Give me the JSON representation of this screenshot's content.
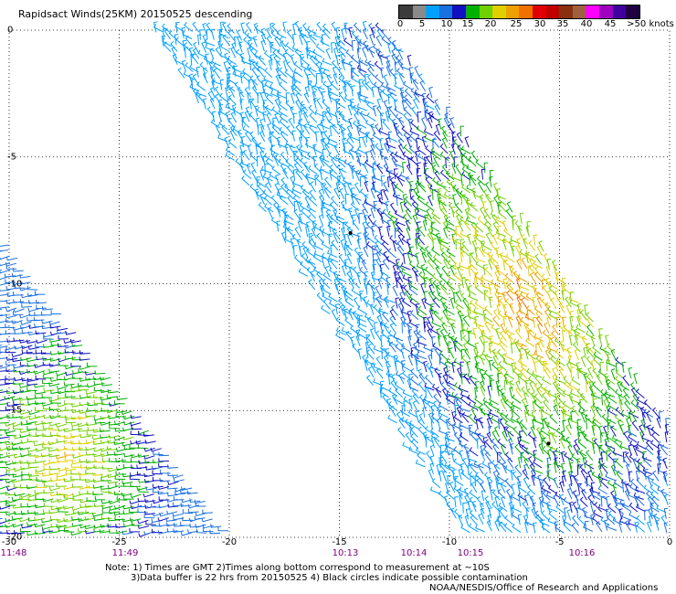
{
  "header": {
    "title": "Rapidsact Winds(25KM) 20150525 descending"
  },
  "colorbar": {
    "labels": [
      "0",
      "5",
      "10",
      "15",
      "20",
      "25",
      "30",
      "35",
      "40",
      "45",
      ">50 knots"
    ],
    "colors": [
      "#3c3c3c",
      "#8a8a8a",
      "#00a0ff",
      "#1a70e0",
      "#1010c0",
      "#00b000",
      "#70d000",
      "#e0d000",
      "#f0a000",
      "#f07000",
      "#e00000",
      "#c00000",
      "#8a3010",
      "#a06040",
      "#ff00ff",
      "#a000c0",
      "#4000a0",
      "#200040"
    ]
  },
  "axes": {
    "x_ticks": [
      "-30",
      "-25",
      "-20",
      "-15",
      "-10",
      "-5",
      "0"
    ],
    "y_ticks": [
      "0",
      "-5",
      "-10",
      "-15",
      "-20"
    ],
    "x_range": [
      -30,
      0
    ],
    "y_range": [
      -20,
      0
    ]
  },
  "times": {
    "labels": [
      "11:48",
      "11:49",
      "10:13",
      "10:14",
      "10:15",
      "10:16"
    ]
  },
  "notes": {
    "line1": "Note: 1) Times are GMT 2)Times along bottom correspond to measurement at ~10S",
    "line2": "3)Data buffer is 22 hrs from 20150525 4) Black circles indicate possible contamination",
    "credit": "NOAA/NESDIS/Office of Research and Applications"
  },
  "contamination_points": [
    {
      "lon": -14.5,
      "lat": -8.0
    },
    {
      "lon": -5.5,
      "lat": -16.3
    }
  ],
  "swaths": [
    {
      "name": "west",
      "lon_range": [
        -30,
        -19
      ],
      "lat_range": [
        -20,
        -8.5
      ],
      "wind_knots_range": [
        10,
        25
      ]
    },
    {
      "name": "east",
      "lon_range": [
        -23,
        0
      ],
      "lat_range": [
        -20,
        0
      ],
      "wind_knots_range": [
        5,
        30
      ]
    }
  ]
}
